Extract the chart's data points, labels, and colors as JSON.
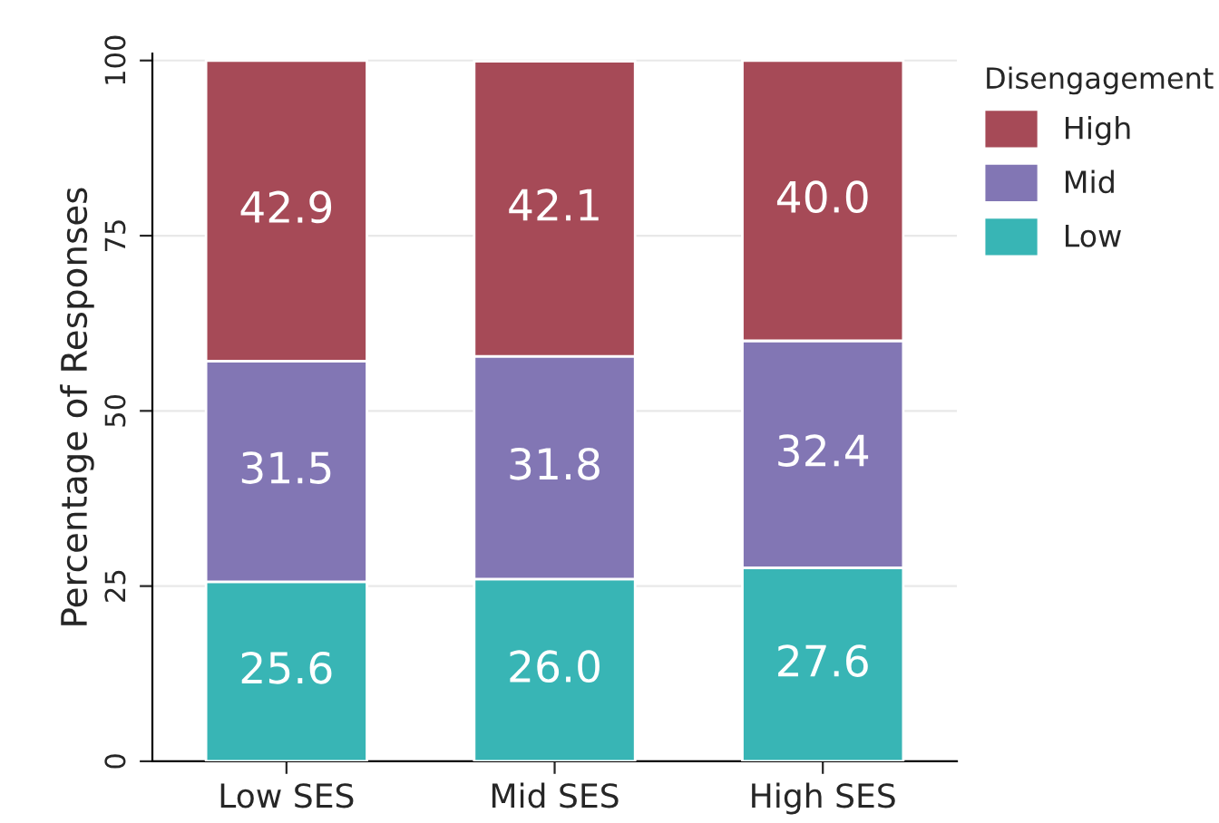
{
  "chart_data": {
    "type": "bar",
    "stacked": true,
    "ylabel": "Percentage of Responses",
    "legend_title": "Disengagement",
    "categories": [
      "Low SES",
      "Mid SES",
      "High SES"
    ],
    "series": [
      {
        "name": "Low",
        "color": "#38b5b5",
        "values": [
          25.6,
          26.0,
          27.6
        ],
        "value_labels": [
          "25.6",
          "26.0",
          "27.6"
        ]
      },
      {
        "name": "Mid",
        "color": "#8276b4",
        "values": [
          31.5,
          31.8,
          32.4
        ],
        "value_labels": [
          "31.5",
          "31.8",
          "32.4"
        ]
      },
      {
        "name": "High",
        "color": "#a64a57",
        "values": [
          42.9,
          42.1,
          40.0
        ],
        "value_labels": [
          "42.9",
          "42.1",
          "40.0"
        ]
      }
    ],
    "ylim": [
      0,
      101
    ],
    "yticks": [
      0,
      25,
      50,
      75,
      100
    ],
    "grid": "y",
    "legend": "top right"
  }
}
